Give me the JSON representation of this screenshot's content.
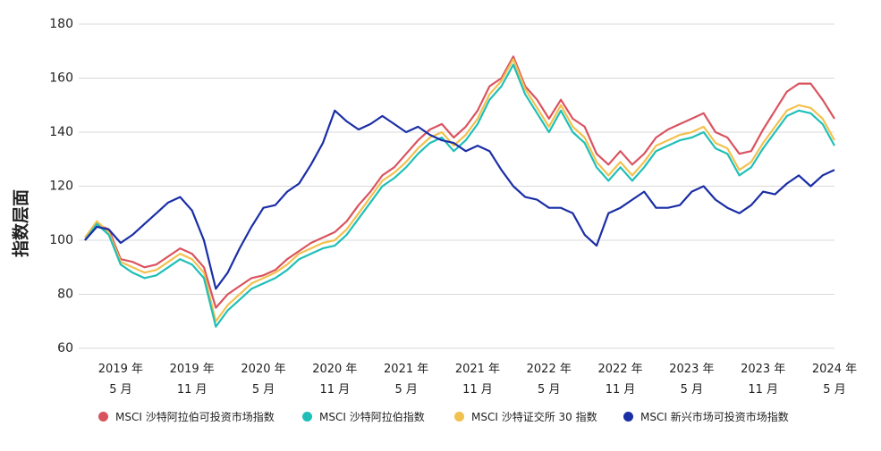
{
  "chart_data": {
    "type": "line",
    "y_label": "指数层面",
    "x": [
      "2019-02",
      "2019-03",
      "2019-04",
      "2019-05",
      "2019-06",
      "2019-07",
      "2019-08",
      "2019-09",
      "2019-10",
      "2019-11",
      "2019-12",
      "2020-01",
      "2020-02",
      "2020-03",
      "2020-04",
      "2020-05",
      "2020-06",
      "2020-07",
      "2020-08",
      "2020-09",
      "2020-10",
      "2020-11",
      "2020-12",
      "2021-01",
      "2021-02",
      "2021-03",
      "2021-04",
      "2021-05",
      "2021-06",
      "2021-07",
      "2021-08",
      "2021-09",
      "2021-10",
      "2021-11",
      "2021-12",
      "2022-01",
      "2022-02",
      "2022-03",
      "2022-04",
      "2022-05",
      "2022-06",
      "2022-07",
      "2022-08",
      "2022-09",
      "2022-10",
      "2022-11",
      "2022-12",
      "2023-01",
      "2023-02",
      "2023-03",
      "2023-04",
      "2023-05",
      "2023-06",
      "2023-07",
      "2023-08",
      "2023-09",
      "2023-10",
      "2023-11",
      "2023-12",
      "2024-01",
      "2024-02",
      "2024-03",
      "2024-04",
      "2024-05"
    ],
    "series": [
      {
        "name": "MSCI 沙特阿拉伯可投资市场指数",
        "color": "#d9535f",
        "values": [
          100,
          106,
          104,
          93,
          92,
          90,
          91,
          94,
          97,
          95,
          90,
          75,
          80,
          83,
          86,
          87,
          89,
          93,
          96,
          99,
          101,
          103,
          107,
          113,
          118,
          124,
          127,
          132,
          137,
          141,
          143,
          138,
          142,
          148,
          157,
          160,
          168,
          157,
          152,
          145,
          152,
          145,
          142,
          132,
          128,
          133,
          128,
          132,
          138,
          141,
          143,
          145,
          147,
          140,
          138,
          132,
          133,
          141,
          148,
          155,
          158,
          158,
          152,
          145
        ]
      },
      {
        "name": "MSCI 沙特阿拉伯指数",
        "color": "#1fbfb8",
        "values": [
          100,
          106,
          102,
          91,
          88,
          86,
          87,
          90,
          93,
          91,
          86,
          68,
          74,
          78,
          82,
          84,
          86,
          89,
          93,
          95,
          97,
          98,
          102,
          108,
          114,
          120,
          123,
          127,
          132,
          136,
          138,
          133,
          137,
          143,
          152,
          157,
          165,
          154,
          147,
          140,
          148,
          140,
          136,
          127,
          122,
          127,
          122,
          127,
          133,
          135,
          137,
          138,
          140,
          134,
          132,
          124,
          127,
          134,
          140,
          146,
          148,
          147,
          143,
          135
        ]
      },
      {
        "name": "MSCI 沙特证交所 30 指数",
        "color": "#f2c14e",
        "values": [
          101,
          107,
          103,
          92,
          90,
          88,
          89,
          92,
          95,
          93,
          88,
          70,
          76,
          80,
          84,
          86,
          88,
          91,
          95,
          97,
          99,
          100,
          104,
          110,
          116,
          122,
          125,
          129,
          134,
          138,
          140,
          135,
          139,
          145,
          154,
          159,
          167,
          156,
          149,
          142,
          150,
          142,
          138,
          129,
          124,
          129,
          124,
          129,
          135,
          137,
          139,
          140,
          142,
          136,
          134,
          126,
          129,
          136,
          142,
          148,
          150,
          149,
          145,
          137
        ]
      },
      {
        "name": "MSCI 新兴市场可投资市场指数",
        "color": "#1a2ea6",
        "values": [
          100,
          105,
          104,
          99,
          102,
          106,
          110,
          114,
          116,
          111,
          100,
          82,
          88,
          97,
          105,
          112,
          113,
          118,
          121,
          128,
          136,
          148,
          144,
          141,
          143,
          146,
          143,
          140,
          142,
          139,
          137,
          136,
          133,
          135,
          133,
          126,
          120,
          116,
          115,
          112,
          112,
          110,
          102,
          98,
          110,
          112,
          115,
          118,
          112,
          112,
          113,
          118,
          120,
          115,
          112,
          110,
          113,
          118,
          117,
          121,
          124,
          120,
          124,
          126
        ]
      }
    ],
    "xlim": [
      "2019-02",
      "2024-05"
    ],
    "xticks": [
      {
        "value": "2019-05",
        "label": "2019 年\n5 月"
      },
      {
        "value": "2019-11",
        "label": "2019 年\n11 月"
      },
      {
        "value": "2020-05",
        "label": "2020 年\n5 月"
      },
      {
        "value": "2020-11",
        "label": "2020 年\n11 月"
      },
      {
        "value": "2021-05",
        "label": "2021 年\n5 月"
      },
      {
        "value": "2021-11",
        "label": "2021 年\n11 月"
      },
      {
        "value": "2022-05",
        "label": "2022 年\n5 月"
      },
      {
        "value": "2022-11",
        "label": "2022 年\n11 月"
      },
      {
        "value": "2023-05",
        "label": "2023 年\n5 月"
      },
      {
        "value": "2023-11",
        "label": "2023 年\n11 月"
      },
      {
        "value": "2024-05",
        "label": "2024 年\n5 月"
      }
    ],
    "ylim": [
      60,
      180
    ],
    "yticks": [
      60,
      80,
      100,
      120,
      140,
      160,
      180
    ],
    "grid": true,
    "legend": "bottom"
  }
}
